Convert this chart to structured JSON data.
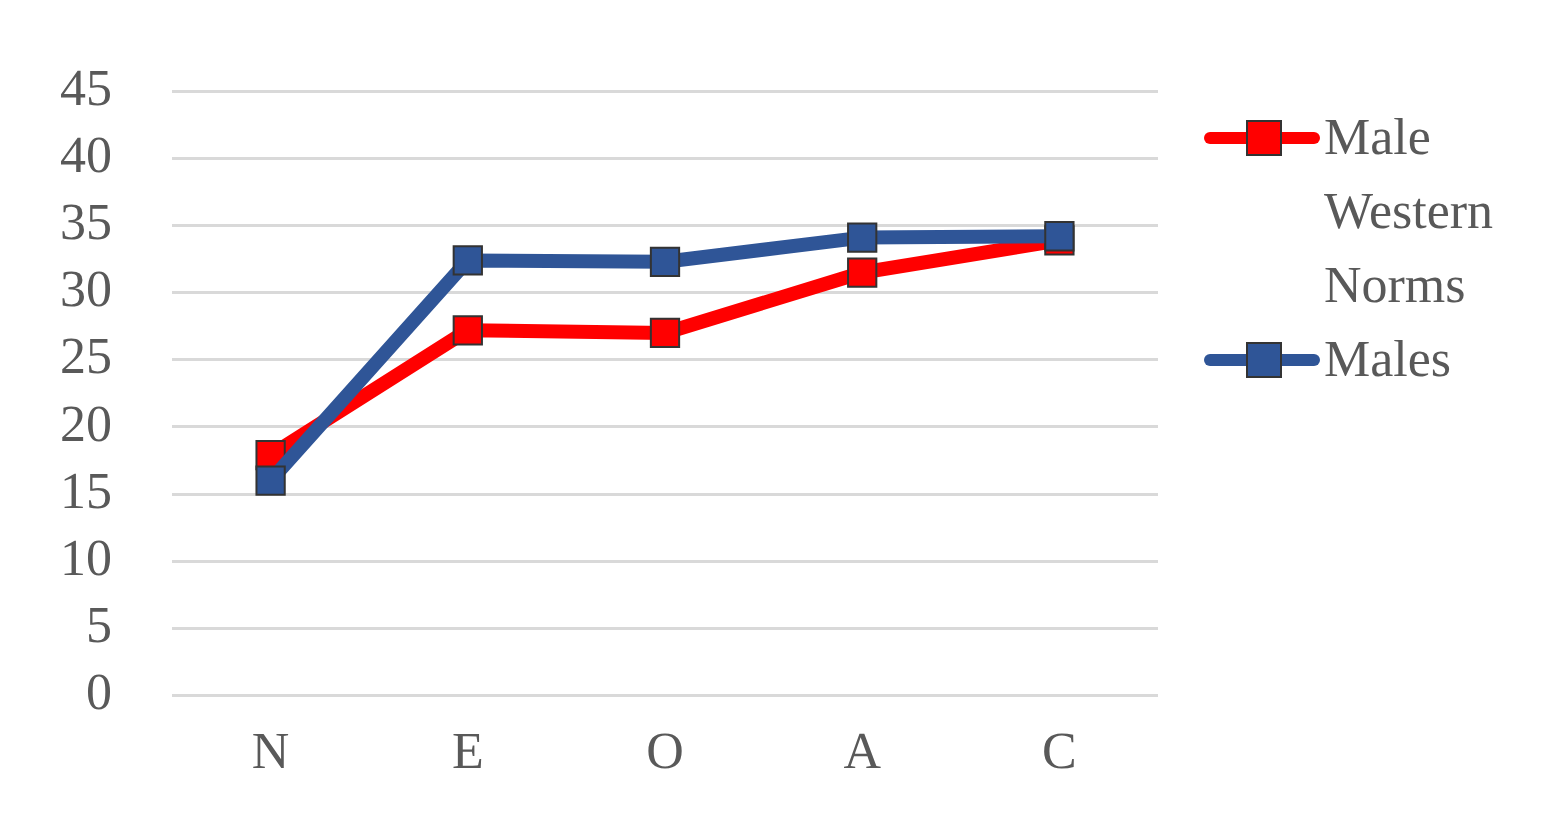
{
  "chart_data": {
    "type": "line",
    "categories": [
      "N",
      "E",
      "O",
      "A",
      "C"
    ],
    "series": [
      {
        "name": "Male Western Norms",
        "color": "#ff0000",
        "values": [
          17.9,
          27.2,
          27.0,
          31.5,
          33.9
        ]
      },
      {
        "name": "Males",
        "color": "#2f5597",
        "values": [
          16.0,
          32.4,
          32.3,
          34.1,
          34.2
        ]
      }
    ],
    "ylim": [
      0,
      45
    ],
    "yticks": [
      0,
      5,
      10,
      15,
      20,
      25,
      30,
      35,
      40,
      45
    ],
    "grid": "y",
    "legend": "right",
    "marker": "square"
  }
}
